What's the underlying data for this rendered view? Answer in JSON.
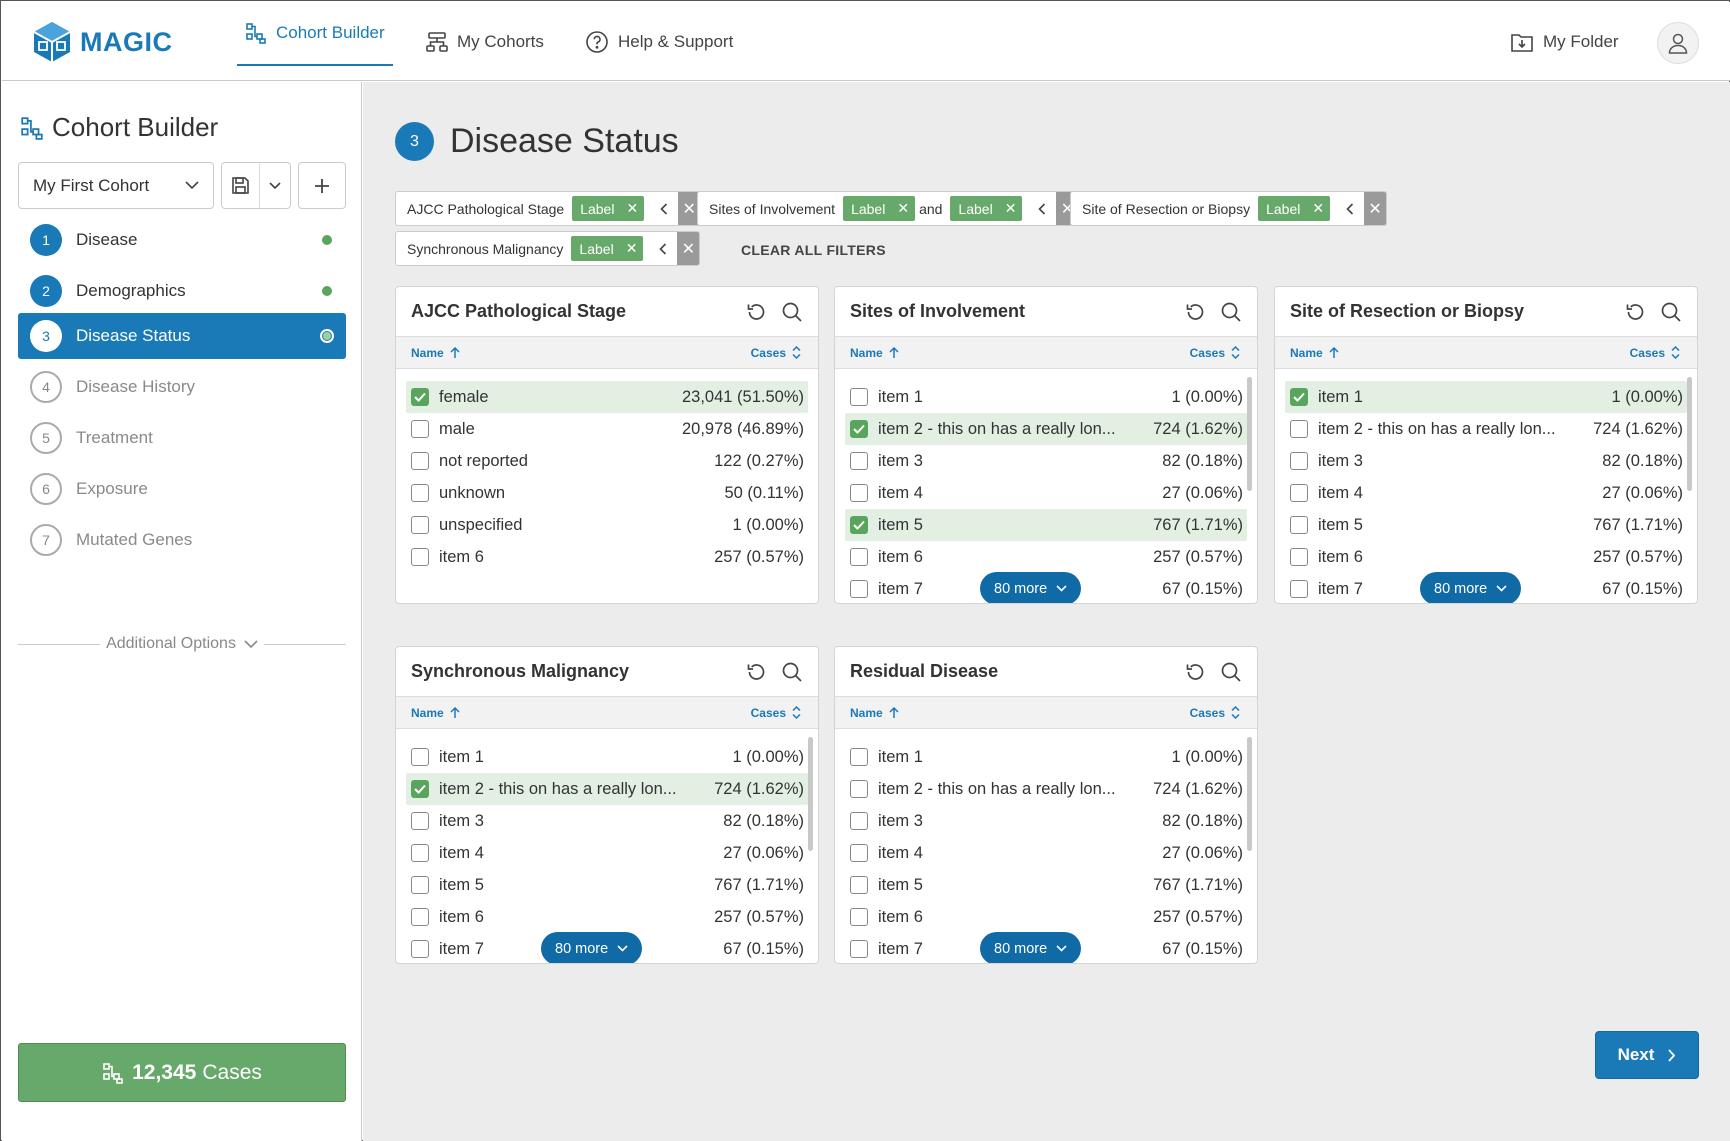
{
  "app": {
    "logo_text": "MAGIC"
  },
  "nav": {
    "cohort_builder": "Cohort Builder",
    "my_cohorts": "My Cohorts",
    "help_support": "Help & Support",
    "my_folder": "My Folder"
  },
  "sidebar": {
    "title": "Cohort Builder",
    "cohort_name": "My First Cohort",
    "steps": [
      {
        "num": "1",
        "label": "Disease",
        "state": "done"
      },
      {
        "num": "2",
        "label": "Demographics",
        "state": "done"
      },
      {
        "num": "3",
        "label": "Disease Status",
        "state": "current"
      },
      {
        "num": "4",
        "label": "Disease History",
        "state": "todo"
      },
      {
        "num": "5",
        "label": "Treatment",
        "state": "todo"
      },
      {
        "num": "6",
        "label": "Exposure",
        "state": "todo"
      },
      {
        "num": "7",
        "label": "Mutated Genes",
        "state": "todo"
      }
    ],
    "additional_options": "Additional Options",
    "cases_count": "12,345",
    "cases_label": "Cases"
  },
  "page": {
    "step_num": "3",
    "title": "Disease Status",
    "clear_all": "CLEAR ALL FILTERS",
    "next": "Next"
  },
  "filters": [
    {
      "name": "AJCC Pathological Stage",
      "tags": [
        "Label"
      ],
      "joiner": ""
    },
    {
      "name": "Sites of Involvement",
      "tags": [
        "Label",
        "Label"
      ],
      "joiner": "and"
    },
    {
      "name": "Site of Resection or Biopsy",
      "tags": [
        "Label"
      ],
      "joiner": ""
    },
    {
      "name": "Synchronous Malignancy",
      "tags": [
        "Label"
      ],
      "joiner": ""
    }
  ],
  "column_headers": {
    "name": "Name",
    "cases": "Cases"
  },
  "cards": [
    {
      "title": "AJCC Pathological Stage",
      "more": "",
      "scroll": false,
      "rows": [
        {
          "label": "female",
          "value": "23,041 (51.50%)",
          "checked": true
        },
        {
          "label": "male",
          "value": "20,978 (46.89%)",
          "checked": false
        },
        {
          "label": "not reported",
          "value": "122 (0.27%)",
          "checked": false
        },
        {
          "label": "unknown",
          "value": "50 (0.11%)",
          "checked": false
        },
        {
          "label": "unspecified",
          "value": "1 (0.00%)",
          "checked": false
        },
        {
          "label": "item 6",
          "value": "257 (0.57%)",
          "checked": false
        }
      ]
    },
    {
      "title": "Sites of Involvement",
      "more": "80 more",
      "scroll": true,
      "rows": [
        {
          "label": "item 1",
          "value": "1 (0.00%)",
          "checked": false
        },
        {
          "label": "item 2 - this on has a really lon...",
          "value": "724 (1.62%)",
          "checked": true
        },
        {
          "label": "item 3",
          "value": "82 (0.18%)",
          "checked": false
        },
        {
          "label": "item 4",
          "value": "27 (0.06%)",
          "checked": false
        },
        {
          "label": "item 5",
          "value": "767 (1.71%)",
          "checked": true
        },
        {
          "label": "item 6",
          "value": "257 (0.57%)",
          "checked": false
        },
        {
          "label": "item 7",
          "value": "67 (0.15%)",
          "checked": false
        }
      ]
    },
    {
      "title": "Site of Resection or Biopsy",
      "more": "80 more",
      "scroll": true,
      "rows": [
        {
          "label": "item 1",
          "value": "1 (0.00%)",
          "checked": true
        },
        {
          "label": "item 2 - this on has a really lon...",
          "value": "724 (1.62%)",
          "checked": false
        },
        {
          "label": "item 3",
          "value": "82 (0.18%)",
          "checked": false
        },
        {
          "label": "item 4",
          "value": "27 (0.06%)",
          "checked": false
        },
        {
          "label": "item 5",
          "value": "767 (1.71%)",
          "checked": false
        },
        {
          "label": "item 6",
          "value": "257 (0.57%)",
          "checked": false
        },
        {
          "label": "item 7",
          "value": "67 (0.15%)",
          "checked": false
        }
      ]
    },
    {
      "title": "Synchronous Malignancy",
      "more": "80 more",
      "scroll": true,
      "rows": [
        {
          "label": "item 1",
          "value": "1 (0.00%)",
          "checked": false
        },
        {
          "label": "item 2 - this on has a really lon...",
          "value": "724 (1.62%)",
          "checked": true
        },
        {
          "label": "item 3",
          "value": "82 (0.18%)",
          "checked": false
        },
        {
          "label": "item 4",
          "value": "27 (0.06%)",
          "checked": false
        },
        {
          "label": "item 5",
          "value": "767 (1.71%)",
          "checked": false
        },
        {
          "label": "item 6",
          "value": "257 (0.57%)",
          "checked": false
        },
        {
          "label": "item 7",
          "value": "67 (0.15%)",
          "checked": false
        }
      ]
    },
    {
      "title": "Residual Disease",
      "more": "80 more",
      "scroll": true,
      "rows": [
        {
          "label": "item 1",
          "value": "1 (0.00%)",
          "checked": false
        },
        {
          "label": "item 2 - this on has a really lon...",
          "value": "724 (1.62%)",
          "checked": false
        },
        {
          "label": "item 3",
          "value": "82 (0.18%)",
          "checked": false
        },
        {
          "label": "item 4",
          "value": "27 (0.06%)",
          "checked": false
        },
        {
          "label": "item 5",
          "value": "767 (1.71%)",
          "checked": false
        },
        {
          "label": "item 6",
          "value": "257 (0.57%)",
          "checked": false
        },
        {
          "label": "item 7",
          "value": "67 (0.15%)",
          "checked": false
        }
      ]
    }
  ],
  "colors": {
    "accent": "#1a7ab8",
    "success": "#67a96b",
    "selected_row": "#e3efe3"
  }
}
